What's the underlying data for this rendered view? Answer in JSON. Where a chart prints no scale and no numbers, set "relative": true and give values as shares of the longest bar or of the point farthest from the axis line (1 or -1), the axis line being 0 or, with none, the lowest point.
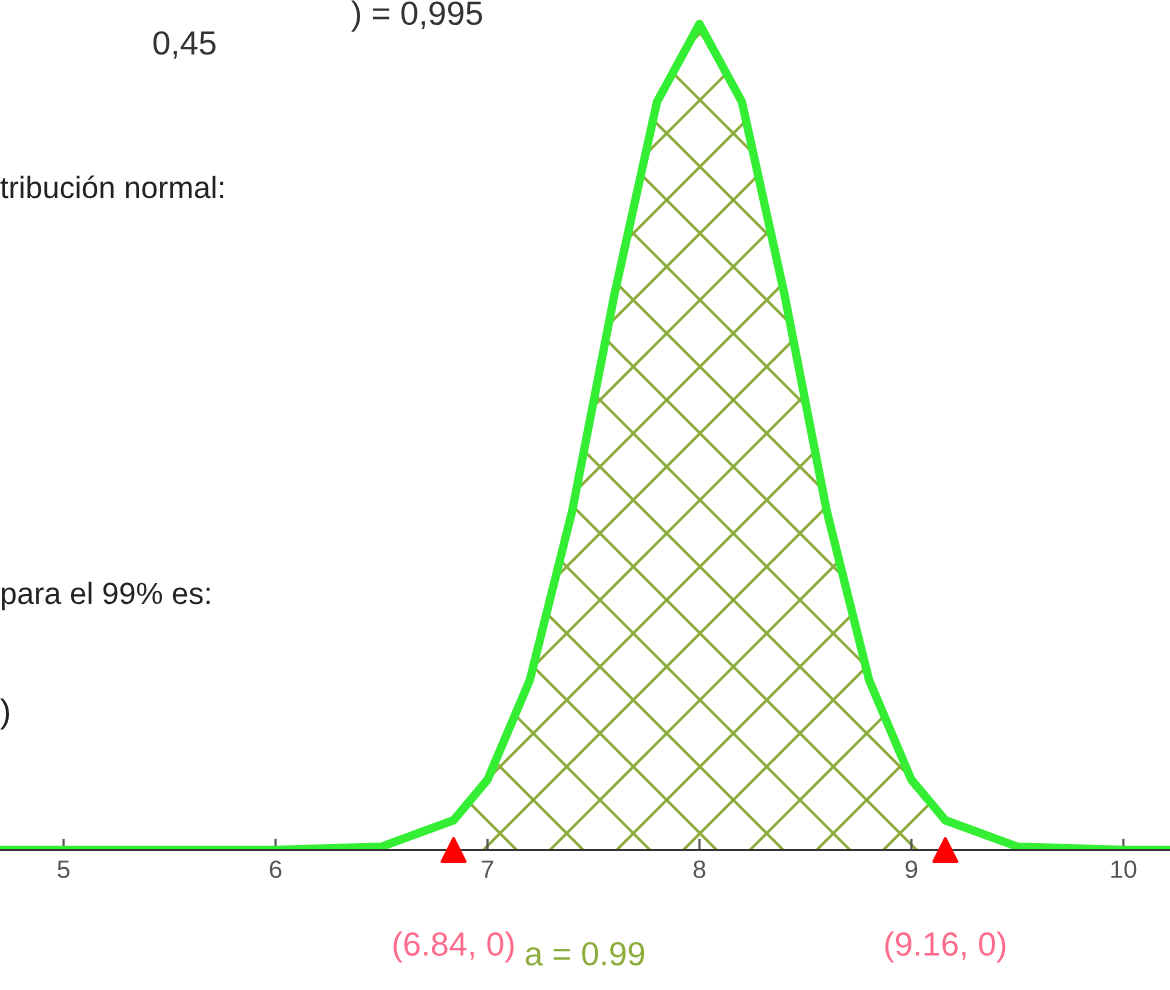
{
  "chart_data": {
    "type": "line",
    "relative": true,
    "xlim": [
      4.7,
      10.22
    ],
    "xticks": [
      5,
      6,
      7,
      8,
      9,
      10
    ],
    "tick_labels": "x",
    "grid": false,
    "legend": false,
    "series": [
      {
        "type": "area",
        "color": "#8cac3c",
        "x": [
          6.84,
          7.0,
          7.2,
          7.4,
          7.6,
          7.8,
          8.0,
          8.2,
          8.4,
          8.6,
          8.8,
          9.0,
          9.16
        ],
        "values": [
          0.036,
          0.085,
          0.206,
          0.411,
          0.674,
          0.906,
          1.0,
          0.906,
          0.674,
          0.411,
          0.206,
          0.085,
          0.036
        ]
      },
      {
        "color": "#33ee33",
        "x": [
          4.7,
          6.0,
          6.5,
          6.84,
          7.0,
          7.2,
          7.4,
          7.6,
          7.8,
          8.0,
          8.2,
          8.4,
          8.6,
          8.8,
          9.0,
          9.16,
          9.5,
          10.0,
          10.22
        ],
        "values": [
          0.0,
          0.0,
          0.004,
          0.036,
          0.085,
          0.206,
          0.411,
          0.674,
          0.906,
          1.0,
          0.906,
          0.674,
          0.411,
          0.206,
          0.085,
          0.036,
          0.004,
          0.0,
          0.0
        ]
      },
      {
        "type": "scatter",
        "color": "#ff0000",
        "marker": "triangle",
        "x": [
          6.84,
          9.16
        ],
        "values": [
          0,
          0
        ]
      }
    ],
    "annotations": [
      {
        "text": "(6.84, 0)",
        "x": 6.84,
        "y": 0
      },
      {
        "text": "(9.16, 0)",
        "x": 9.16,
        "y": 0
      },
      "a = 0.99",
      "0,45",
      ") = 0,995",
      "tribución normal:",
      "para el 99% es:",
      ")"
    ]
  }
}
